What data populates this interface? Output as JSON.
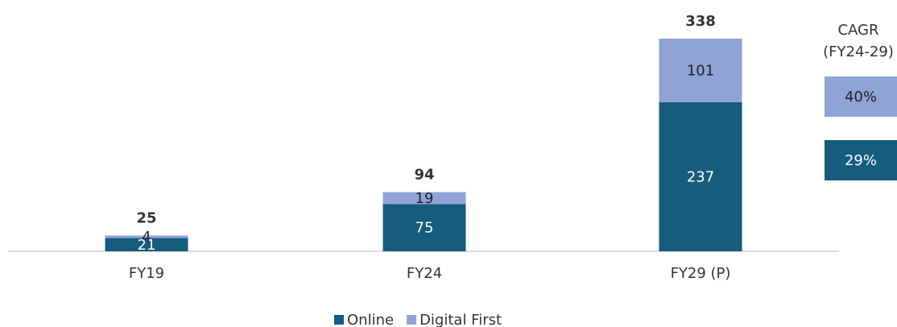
{
  "chart_data": {
    "type": "stacked_bar",
    "categories": [
      "FY19",
      "FY24",
      "FY29 (P)"
    ],
    "series": [
      {
        "name": "Online",
        "color": "#165c7d",
        "values": [
          21,
          75,
          237
        ]
      },
      {
        "name": "Digital First",
        "color": "#8fa3d5",
        "values": [
          4,
          19,
          101
        ]
      }
    ],
    "totals": [
      25,
      94,
      338
    ],
    "ylim": [
      0,
      338
    ],
    "legend": "bottom",
    "cagr": {
      "title": "CAGR",
      "subtitle": "(FY24-29)",
      "values": [
        29,
        40
      ],
      "value_labels": [
        "29%",
        "40%"
      ]
    }
  }
}
